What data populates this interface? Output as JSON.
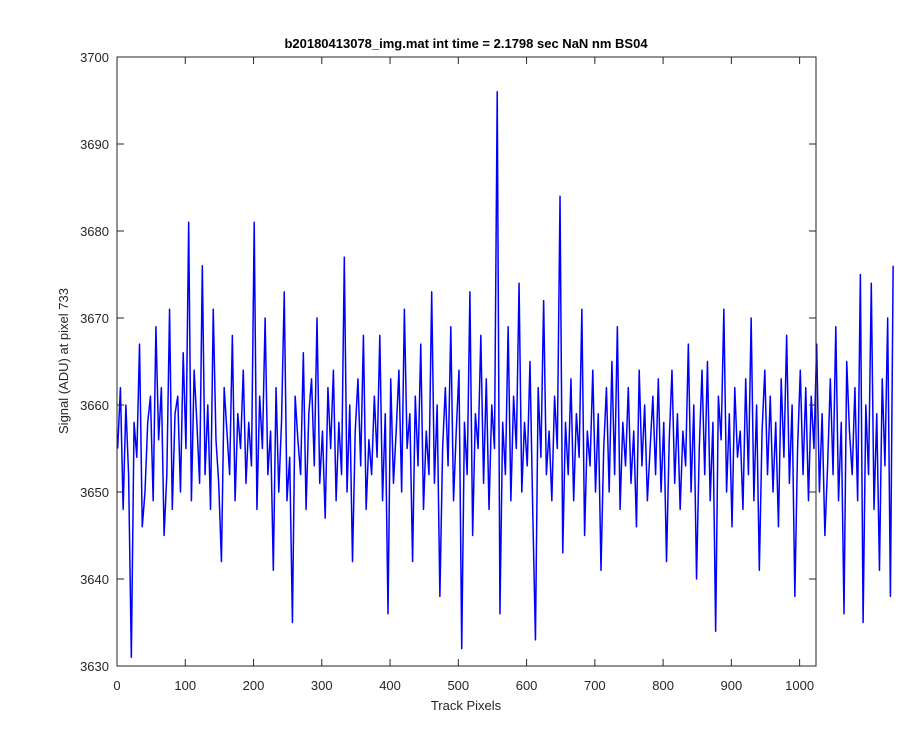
{
  "chart_data": {
    "type": "line",
    "title": "b20180413078_img.mat int time = 2.1798 sec  NaN nm BS04",
    "xlabel": "Track Pixels",
    "ylabel": "Signal (ADU) at pixel 733",
    "xlim": [
      0,
      1024
    ],
    "ylim": [
      3630,
      3700
    ],
    "x_ticks": [
      0,
      100,
      200,
      300,
      400,
      500,
      600,
      700,
      800,
      900,
      1000
    ],
    "y_ticks": [
      3630,
      3640,
      3650,
      3660,
      3670,
      3680,
      3690,
      3700
    ],
    "grid": false,
    "line_color": "#0000ff",
    "series": [
      {
        "x_start": 1,
        "x_step": 4,
        "values": [
          3655,
          3662,
          3648,
          3660,
          3652,
          3631,
          3658,
          3654,
          3667,
          3646,
          3650,
          3658,
          3661,
          3649,
          3669,
          3656,
          3662,
          3645,
          3652,
          3671,
          3648,
          3659,
          3661,
          3650,
          3666,
          3655,
          3681,
          3649,
          3664,
          3658,
          3651,
          3676,
          3652,
          3660,
          3648,
          3671,
          3656,
          3651,
          3642,
          3662,
          3657,
          3652,
          3668,
          3649,
          3659,
          3655,
          3664,
          3651,
          3658,
          3653,
          3681,
          3648,
          3661,
          3655,
          3670,
          3652,
          3657,
          3641,
          3662,
          3650,
          3658,
          3673,
          3649,
          3654,
          3635,
          3661,
          3656,
          3652,
          3666,
          3648,
          3659,
          3663,
          3653,
          3670,
          3651,
          3657,
          3647,
          3662,
          3655,
          3664,
          3649,
          3658,
          3652,
          3677,
          3650,
          3660,
          3642,
          3657,
          3663,
          3653,
          3668,
          3648,
          3656,
          3652,
          3661,
          3654,
          3668,
          3649,
          3659,
          3636,
          3663,
          3651,
          3657,
          3664,
          3650,
          3671,
          3655,
          3659,
          3642,
          3661,
          3653,
          3667,
          3648,
          3657,
          3652,
          3673,
          3651,
          3660,
          3638,
          3655,
          3662,
          3653,
          3669,
          3649,
          3657,
          3664,
          3632,
          3658,
          3652,
          3673,
          3645,
          3659,
          3655,
          3668,
          3651,
          3663,
          3648,
          3660,
          3655,
          3696,
          3636,
          3658,
          3652,
          3669,
          3649,
          3661,
          3655,
          3674,
          3650,
          3658,
          3653,
          3665,
          3648,
          3633,
          3662,
          3654,
          3672,
          3652,
          3657,
          3649,
          3661,
          3655,
          3684,
          3643,
          3658,
          3652,
          3663,
          3649,
          3659,
          3654,
          3671,
          3645,
          3657,
          3653,
          3664,
          3650,
          3659,
          3641,
          3655,
          3662,
          3650,
          3665,
          3652,
          3669,
          3648,
          3658,
          3653,
          3662,
          3651,
          3657,
          3646,
          3664,
          3653,
          3660,
          3649,
          3655,
          3661,
          3652,
          3663,
          3650,
          3658,
          3642,
          3656,
          3664,
          3651,
          3659,
          3648,
          3657,
          3653,
          3667,
          3650,
          3660,
          3640,
          3655,
          3664,
          3652,
          3665,
          3649,
          3658,
          3634,
          3661,
          3656,
          3671,
          3650,
          3659,
          3646,
          3662,
          3654,
          3657,
          3648,
          3663,
          3652,
          3670,
          3649,
          3660,
          3641,
          3657,
          3664,
          3652,
          3661,
          3650,
          3658,
          3646,
          3663,
          3654,
          3668,
          3651,
          3660,
          3638,
          3655,
          3664,
          3652,
          3662,
          3649,
          3661,
          3655,
          3667,
          3650,
          3659,
          3645,
          3653,
          3663,
          3652,
          3669,
          3649,
          3658,
          3636,
          3665,
          3657,
          3652,
          3662,
          3649,
          3675,
          3635,
          3660,
          3652,
          3674,
          3648,
          3659,
          3641,
          3663,
          3653,
          3670,
          3638,
          3676
        ]
      }
    ]
  }
}
